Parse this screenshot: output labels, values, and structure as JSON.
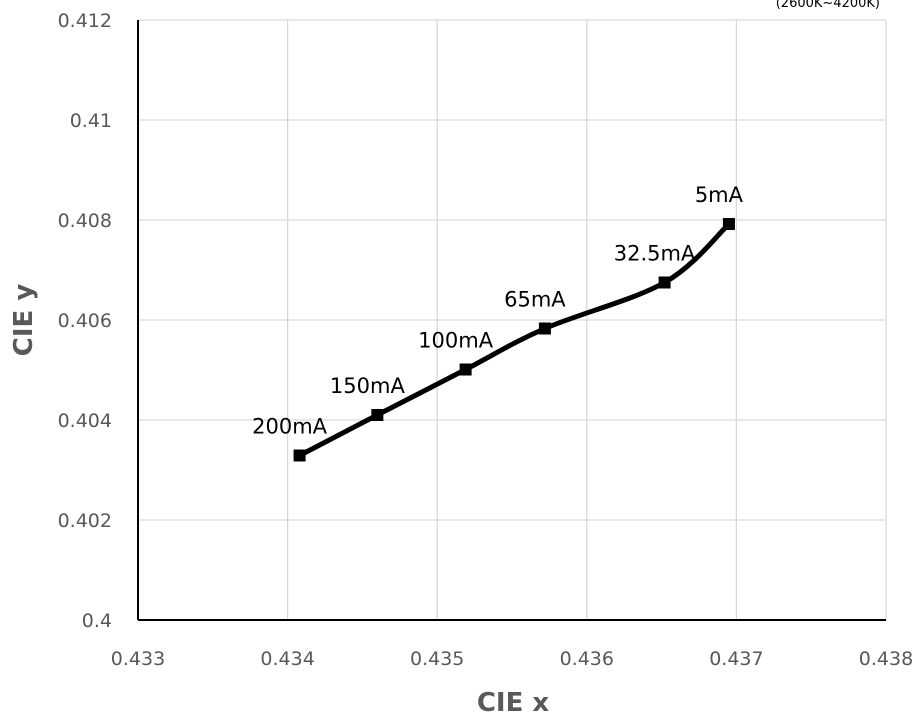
{
  "chart_data": {
    "type": "line",
    "title": "",
    "xlabel": "CIE x",
    "ylabel": "CIE y",
    "xlim": [
      0.433,
      0.438
    ],
    "ylim": [
      0.4,
      0.412
    ],
    "x_ticks": [
      "0.433",
      "0.434",
      "0.435",
      "0.436",
      "0.437",
      "0.438"
    ],
    "y_ticks": [
      "0.4",
      "0.402",
      "0.404",
      "0.406",
      "0.408",
      "0.41",
      "0.412"
    ],
    "grid": true,
    "corner_note": "(2600K~4200K)",
    "series": [
      {
        "points": [
          {
            "x": 0.43408,
            "y": 0.40329,
            "label": "200mA"
          },
          {
            "x": 0.4346,
            "y": 0.4041,
            "label": "150mA"
          },
          {
            "x": 0.43519,
            "y": 0.40501,
            "label": "100mA"
          },
          {
            "x": 0.43572,
            "y": 0.40583,
            "label": "65mA"
          },
          {
            "x": 0.43652,
            "y": 0.40675,
            "label": "32.5mA"
          },
          {
            "x": 0.43695,
            "y": 0.40792,
            "label": "5mA"
          }
        ]
      }
    ],
    "colors": {
      "line": "#000000",
      "grid": "#d9d9d9",
      "axis": "#000000",
      "text": "#595959"
    }
  }
}
